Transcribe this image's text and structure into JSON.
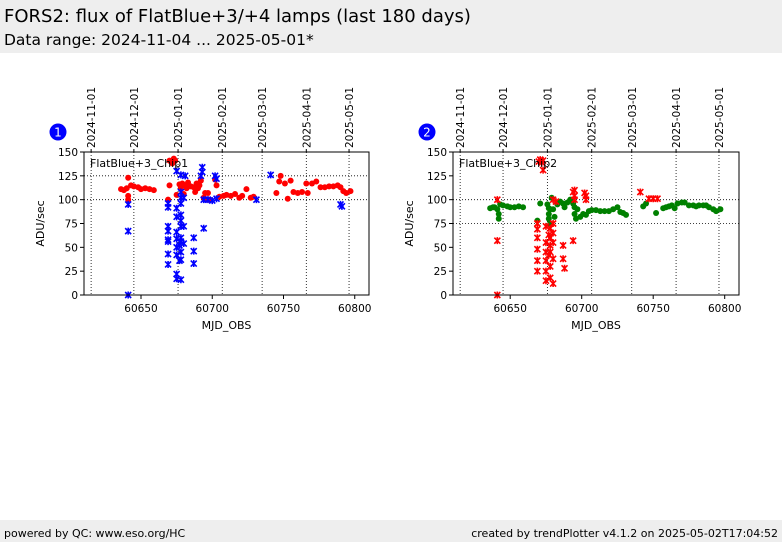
{
  "header": {
    "title": "FORS2: flux of FlatBlue+3/+4 lamps (last 180 days)",
    "subtitle": "Data range: 2024-11-04 ... 2025-05-01*"
  },
  "footer": {
    "left": "powered by QC: www.eso.org/HC",
    "right": "created by trendPlotter v4.1.2 on 2025-05-02T17:04:52"
  },
  "colors": {
    "red": "#ff0000",
    "blue": "#0000ff",
    "green": "#008000",
    "badge": "#0000ff",
    "header_bg": "#eeeeee"
  },
  "chart_data": [
    {
      "type": "scatter",
      "panel_number": "1",
      "label": "FlatBlue+3_Chip1",
      "xlabel": "MJD_OBS",
      "ylabel": "ADU/sec",
      "xlim": [
        60610,
        60810
      ],
      "ylim": [
        0,
        150
      ],
      "xticks": [
        60650,
        60700,
        60750,
        60800
      ],
      "yticks": [
        0,
        25,
        50,
        75,
        100,
        125,
        150
      ],
      "date_ticks": [
        {
          "label": "2024-11-01",
          "mjd": 60615
        },
        {
          "label": "2024-12-01",
          "mjd": 60645
        },
        {
          "label": "2025-01-01",
          "mjd": 60676
        },
        {
          "label": "2025-02-01",
          "mjd": 60707
        },
        {
          "label": "2025-03-01",
          "mjd": 60735
        },
        {
          "label": "2025-04-01",
          "mjd": 60766
        },
        {
          "label": "2025-05-01",
          "mjd": 60796
        }
      ],
      "hlines": [
        100,
        125
      ],
      "grid": "dotted",
      "series": [
        {
          "color": "red",
          "marker": "dot",
          "points": [
            [
              60636,
              111
            ],
            [
              60638,
              110
            ],
            [
              60640,
              112
            ],
            [
              60641,
              123
            ],
            [
              60641,
              104
            ],
            [
              60641,
              100
            ],
            [
              60643,
              115
            ],
            [
              60645,
              114
            ],
            [
              60648,
              113
            ],
            [
              60650,
              111
            ],
            [
              60653,
              112
            ],
            [
              60656,
              111
            ],
            [
              60659,
              110
            ],
            [
              60669,
              100
            ],
            [
              60670,
              115
            ],
            [
              60670,
              141
            ],
            [
              60671,
              140
            ],
            [
              60672,
              138
            ],
            [
              60673,
              143
            ],
            [
              60674,
              141
            ],
            [
              60675,
              105
            ],
            [
              60677,
              116
            ],
            [
              60678,
              113
            ],
            [
              60679,
              117
            ],
            [
              60680,
              106
            ],
            [
              60681,
              115
            ],
            [
              60682,
              112
            ],
            [
              60683,
              118
            ],
            [
              60685,
              114
            ],
            [
              60687,
              113
            ],
            [
              60688,
              108
            ],
            [
              60689,
              117
            ],
            [
              60690,
              112
            ],
            [
              60691,
              115
            ],
            [
              60692,
              120
            ],
            [
              60694,
              102
            ],
            [
              60695,
              107
            ],
            [
              60696,
              100
            ],
            [
              60697,
              107
            ],
            [
              60698,
              100
            ],
            [
              60702,
              121
            ],
            [
              60703,
              115
            ],
            [
              60705,
              103
            ],
            [
              60708,
              104
            ],
            [
              60710,
              105
            ],
            [
              60713,
              104
            ],
            [
              60716,
              106
            ],
            [
              60719,
              102
            ],
            [
              60721,
              104
            ],
            [
              60724,
              111
            ],
            [
              60727,
              102
            ],
            [
              60729,
              103
            ],
            [
              60745,
              107
            ],
            [
              60747,
              119
            ],
            [
              60748,
              125
            ],
            [
              60751,
              117
            ],
            [
              60753,
              101
            ],
            [
              60755,
              120
            ],
            [
              60757,
              108
            ],
            [
              60760,
              107
            ],
            [
              60763,
              108
            ],
            [
              60766,
              117
            ],
            [
              60767,
              107
            ],
            [
              60770,
              117
            ],
            [
              60773,
              119
            ],
            [
              60776,
              113
            ],
            [
              60779,
              113
            ],
            [
              60782,
              114
            ],
            [
              60785,
              114
            ],
            [
              60788,
              115
            ],
            [
              60790,
              113
            ],
            [
              60792,
              109
            ],
            [
              60794,
              107
            ],
            [
              60797,
              109
            ]
          ]
        },
        {
          "color": "blue",
          "marker": "x",
          "points": [
            [
              60641,
              67
            ],
            [
              60641,
              95
            ],
            [
              60641,
              0
            ],
            [
              60669,
              96
            ],
            [
              60669,
              92
            ],
            [
              60669,
              72
            ],
            [
              60669,
              67
            ],
            [
              60669,
              58
            ],
            [
              60669,
              56
            ],
            [
              60669,
              43
            ],
            [
              60669,
              32
            ],
            [
              60675,
              130
            ],
            [
              60675,
              91
            ],
            [
              60675,
              82
            ],
            [
              60675,
              66
            ],
            [
              60675,
              59
            ],
            [
              60675,
              50
            ],
            [
              60675,
              42
            ],
            [
              60675,
              22
            ],
            [
              60675,
              17
            ],
            [
              60677,
              36
            ],
            [
              60677,
              52
            ],
            [
              60678,
              126
            ],
            [
              60678,
              108
            ],
            [
              60678,
              102
            ],
            [
              60678,
              96
            ],
            [
              60678,
              84
            ],
            [
              60678,
              78
            ],
            [
              60678,
              72
            ],
            [
              60678,
              60
            ],
            [
              60678,
              56
            ],
            [
              60678,
              45
            ],
            [
              60678,
              37
            ],
            [
              60678,
              16
            ],
            [
              60680,
              54
            ],
            [
              60680,
              72
            ],
            [
              60681,
              125
            ],
            [
              60680,
              102
            ],
            [
              60687,
              60
            ],
            [
              60687,
              46
            ],
            [
              60687,
              33
            ],
            [
              60692,
              125
            ],
            [
              60693,
              129
            ],
            [
              60693,
              134
            ],
            [
              60694,
              70
            ],
            [
              60694,
              100
            ],
            [
              60697,
              100
            ],
            [
              60700,
              99
            ],
            [
              60702,
              125
            ],
            [
              60703,
              122
            ],
            [
              60703,
              101
            ],
            [
              60731,
              100
            ],
            [
              60741,
              126
            ],
            [
              60790,
              95
            ],
            [
              60791,
              93
            ]
          ]
        }
      ]
    },
    {
      "type": "scatter",
      "panel_number": "2",
      "label": "FlatBlue+3_Chip2",
      "xlabel": "MJD_OBS",
      "ylabel": "ADU/sec",
      "xlim": [
        60610,
        60810
      ],
      "ylim": [
        0,
        150
      ],
      "xticks": [
        60650,
        60700,
        60750,
        60800
      ],
      "yticks": [
        0,
        25,
        50,
        75,
        100,
        125,
        150
      ],
      "date_ticks": [
        {
          "label": "2024-11-01",
          "mjd": 60615
        },
        {
          "label": "2024-12-01",
          "mjd": 60645
        },
        {
          "label": "2025-01-01",
          "mjd": 60676
        },
        {
          "label": "2025-02-01",
          "mjd": 60707
        },
        {
          "label": "2025-03-01",
          "mjd": 60735
        },
        {
          "label": "2025-04-01",
          "mjd": 60766
        },
        {
          "label": "2025-05-01",
          "mjd": 60796
        }
      ],
      "hlines": [
        75,
        100
      ],
      "grid": "dotted",
      "series": [
        {
          "color": "green",
          "marker": "dot",
          "points": [
            [
              60636,
              91
            ],
            [
              60638,
              92
            ],
            [
              60639,
              92
            ],
            [
              60641,
              90
            ],
            [
              60642,
              85
            ],
            [
              60642,
              80
            ],
            [
              60643,
              95
            ],
            [
              60645,
              94
            ],
            [
              60648,
              93
            ],
            [
              60650,
              92
            ],
            [
              60653,
              92
            ],
            [
              60656,
              93
            ],
            [
              60659,
              92
            ],
            [
              60669,
              78
            ],
            [
              60671,
              96
            ],
            [
              60676,
              95
            ],
            [
              60677,
              91
            ],
            [
              60677,
              85
            ],
            [
              60677,
              80
            ],
            [
              60678,
              90
            ],
            [
              60678,
              75
            ],
            [
              60679,
              102
            ],
            [
              60680,
              90
            ],
            [
              60681,
              82
            ],
            [
              60683,
              95
            ],
            [
              60685,
              98
            ],
            [
              60687,
              96
            ],
            [
              60688,
              92
            ],
            [
              60690,
              97
            ],
            [
              60692,
              100
            ],
            [
              60694,
              96
            ],
            [
              60695,
              92
            ],
            [
              60695,
              85
            ],
            [
              60696,
              80
            ],
            [
              60697,
              90
            ],
            [
              60699,
              82
            ],
            [
              60701,
              85
            ],
            [
              60703,
              84
            ],
            [
              60705,
              88
            ],
            [
              60707,
              89
            ],
            [
              60710,
              89
            ],
            [
              60713,
              88
            ],
            [
              60716,
              88
            ],
            [
              60719,
              88
            ],
            [
              60722,
              90
            ],
            [
              60725,
              92
            ],
            [
              60727,
              87
            ],
            [
              60729,
              86
            ],
            [
              60731,
              84
            ],
            [
              60743,
              93
            ],
            [
              60745,
              96
            ],
            [
              60752,
              86
            ],
            [
              60757,
              91
            ],
            [
              60759,
              92
            ],
            [
              60761,
              93
            ],
            [
              60763,
              94
            ],
            [
              60765,
              91
            ],
            [
              60767,
              96
            ],
            [
              60770,
              97
            ],
            [
              60772,
              97
            ],
            [
              60775,
              94
            ],
            [
              60778,
              94
            ],
            [
              60780,
              93
            ],
            [
              60782,
              94
            ],
            [
              60785,
              94
            ],
            [
              60787,
              94
            ],
            [
              60789,
              92
            ],
            [
              60792,
              90
            ],
            [
              60794,
              88
            ],
            [
              60797,
              90
            ]
          ]
        },
        {
          "color": "red",
          "marker": "x",
          "points": [
            [
              60641,
              100
            ],
            [
              60641,
              57
            ],
            [
              60641,
              0
            ],
            [
              60669,
              75
            ],
            [
              60669,
              69
            ],
            [
              60669,
              60
            ],
            [
              60669,
              48
            ],
            [
              60669,
              36
            ],
            [
              60669,
              25
            ],
            [
              60670,
              140
            ],
            [
              60671,
              142
            ],
            [
              60672,
              139
            ],
            [
              60673,
              141
            ],
            [
              60673,
              131
            ],
            [
              60675,
              72
            ],
            [
              60675,
              55
            ],
            [
              60675,
              45
            ],
            [
              60675,
              36
            ],
            [
              60675,
              25
            ],
            [
              60675,
              15
            ],
            [
              60677,
              63
            ],
            [
              60677,
              42
            ],
            [
              60678,
              70
            ],
            [
              60678,
              60
            ],
            [
              60678,
              52
            ],
            [
              60678,
              45
            ],
            [
              60678,
              30
            ],
            [
              60678,
              18
            ],
            [
              60680,
              75
            ],
            [
              60680,
              65
            ],
            [
              60680,
              55
            ],
            [
              60680,
              38
            ],
            [
              60680,
              12
            ],
            [
              60680,
              100
            ],
            [
              60682,
              98
            ],
            [
              60687,
              52
            ],
            [
              60687,
              38
            ],
            [
              60688,
              28
            ],
            [
              60694,
              57
            ],
            [
              60694,
              108
            ],
            [
              60695,
              100
            ],
            [
              60695,
              104
            ],
            [
              60695,
              110
            ],
            [
              60702,
              107
            ],
            [
              60703,
              100
            ],
            [
              60703,
              104
            ],
            [
              60741,
              108
            ],
            [
              60747,
              101
            ],
            [
              60750,
              101
            ],
            [
              60753,
              101
            ]
          ]
        }
      ]
    }
  ]
}
